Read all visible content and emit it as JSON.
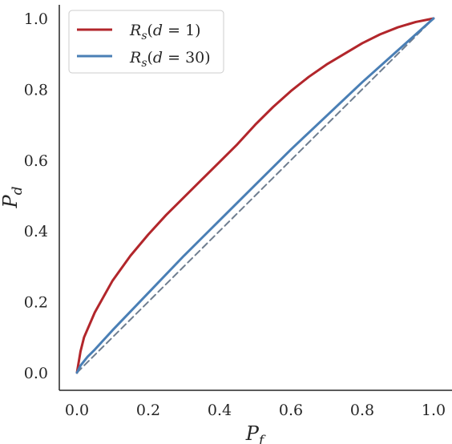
{
  "chart_data": {
    "type": "line",
    "xlabel": "P_f",
    "ylabel": "P_d",
    "xlim": [
      0.0,
      1.0
    ],
    "ylim": [
      0.0,
      1.0
    ],
    "xticks": [
      "0.0",
      "0.2",
      "0.4",
      "0.6",
      "0.8",
      "1.0"
    ],
    "yticks": [
      "0.0",
      "0.2",
      "0.4",
      "0.6",
      "0.8",
      "1.0"
    ],
    "grid": false,
    "legend_position": "top-left",
    "series": [
      {
        "name": "R_s(d = 1)",
        "color": "#b2262b",
        "x": [
          0.0,
          0.01,
          0.02,
          0.05,
          0.1,
          0.15,
          0.2,
          0.25,
          0.3,
          0.35,
          0.4,
          0.45,
          0.5,
          0.55,
          0.6,
          0.65,
          0.7,
          0.75,
          0.8,
          0.85,
          0.9,
          0.95,
          1.0
        ],
        "y": [
          0.0,
          0.06,
          0.1,
          0.17,
          0.26,
          0.33,
          0.39,
          0.445,
          0.495,
          0.545,
          0.595,
          0.645,
          0.7,
          0.75,
          0.795,
          0.835,
          0.87,
          0.9,
          0.93,
          0.955,
          0.975,
          0.99,
          1.0
        ]
      },
      {
        "name": "R_s(d = 30)",
        "color": "#4a7fb5",
        "x": [
          0.0,
          0.01,
          0.03,
          0.05,
          0.1,
          0.2,
          0.3,
          0.4,
          0.5,
          0.6,
          0.7,
          0.8,
          0.9,
          1.0
        ],
        "y": [
          0.0,
          0.02,
          0.045,
          0.065,
          0.12,
          0.225,
          0.33,
          0.43,
          0.53,
          0.63,
          0.725,
          0.82,
          0.91,
          1.0
        ]
      },
      {
        "name": "",
        "color": "#6f7e90",
        "dashed": true,
        "x": [
          0.0,
          1.0
        ],
        "y": [
          0.0,
          1.0
        ]
      }
    ]
  }
}
